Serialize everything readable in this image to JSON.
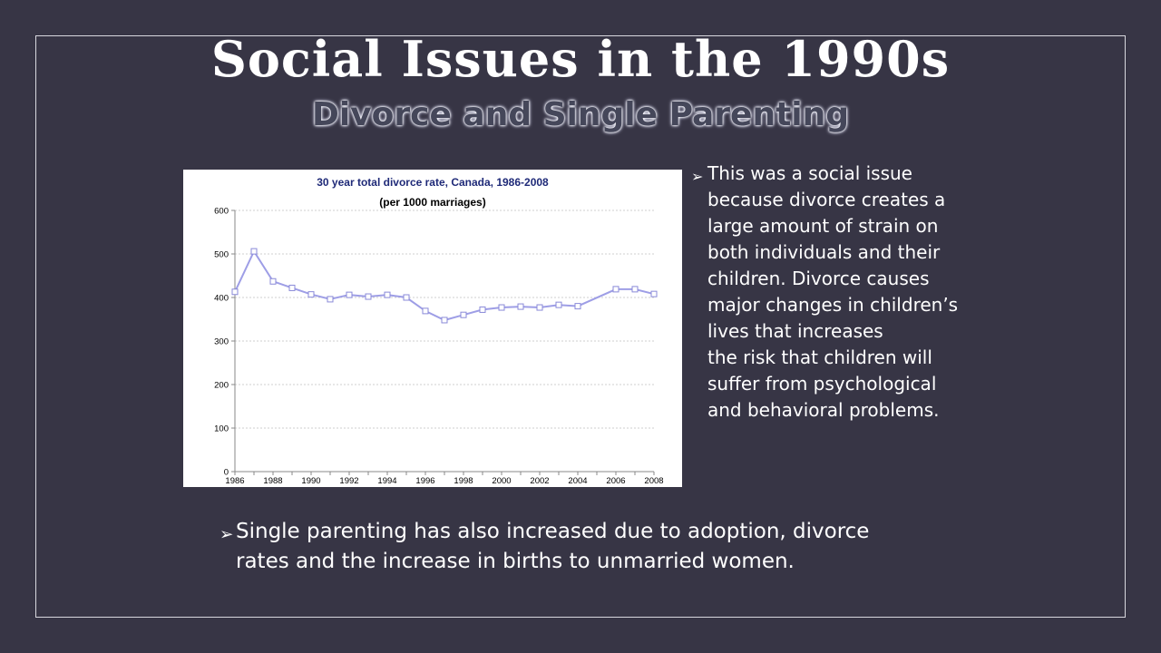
{
  "slide": {
    "title": "Social Issues in the 1990s",
    "subtitle": "Divorce and Single Parenting"
  },
  "bullets": {
    "arrow_glyph": "➢",
    "right_lines": [
      "This was a social issue",
      "because divorce creates a",
      "large amount of strain on",
      "both individuals and their",
      "children. Divorce causes",
      "major changes in children’s",
      "lives that increases",
      "the risk that children will",
      "suffer from psychological",
      "and behavioral problems."
    ],
    "bottom_lines": [
      "Single parenting has also increased due to adoption, divorce",
      "rates and the increase in births to unmarried women."
    ]
  },
  "chart_data": {
    "type": "line",
    "title": "30 year total divorce rate, Canada, 1986-2008",
    "subtitle": "(per 1000 marriages)",
    "xlabel": "",
    "ylabel": "",
    "x": [
      1986,
      1987,
      1988,
      1989,
      1990,
      1991,
      1992,
      1993,
      1994,
      1995,
      1996,
      1997,
      1998,
      1999,
      2000,
      2001,
      2002,
      2003,
      2004,
      2006,
      2007,
      2008
    ],
    "series": [
      {
        "values": [
          413,
          506,
          437,
          422,
          407,
          396,
          406,
          402,
          406,
          400,
          369,
          348,
          360,
          372,
          377,
          379,
          377,
          383,
          380,
          419,
          419,
          408
        ],
        "color": "#9e9ee6"
      }
    ],
    "xlim": [
      1986,
      2008
    ],
    "ylim": [
      0,
      600
    ],
    "yticks": [
      0,
      100,
      200,
      300,
      400,
      500,
      600
    ],
    "xtick_labels": [
      "1986",
      "1988",
      "1990",
      "1992",
      "1994",
      "1996",
      "1998",
      "2000",
      "2002",
      "2004",
      "2006",
      "2008"
    ],
    "grid": true,
    "legend": "none",
    "colors": {
      "title": "#1f2a78",
      "grid": "#cfcfcf",
      "axis": "#888888"
    }
  }
}
